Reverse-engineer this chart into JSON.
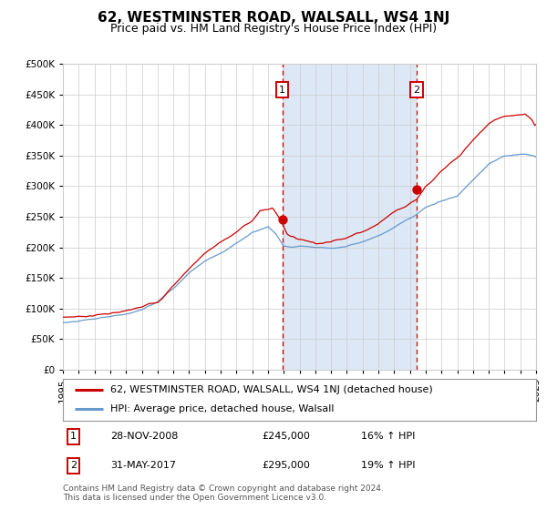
{
  "title": "62, WESTMINSTER ROAD, WALSALL, WS4 1NJ",
  "subtitle": "Price paid vs. HM Land Registry's House Price Index (HPI)",
  "legend_line1": "62, WESTMINSTER ROAD, WALSALL, WS4 1NJ (detached house)",
  "legend_line2": "HPI: Average price, detached house, Walsall",
  "annotation1_date": "28-NOV-2008",
  "annotation1_price": "£245,000",
  "annotation1_hpi": "16% ↑ HPI",
  "annotation1_year": 2008.91,
  "annotation1_value": 245000,
  "annotation2_date": "31-MAY-2017",
  "annotation2_price": "£295,000",
  "annotation2_hpi": "19% ↑ HPI",
  "annotation2_year": 2017.42,
  "annotation2_value": 295000,
  "year_start": 1995,
  "year_end": 2025,
  "ymin": 0,
  "ymax": 500000,
  "yticks": [
    0,
    50000,
    100000,
    150000,
    200000,
    250000,
    300000,
    350000,
    400000,
    450000,
    500000
  ],
  "red_color": "#cc0000",
  "blue_color": "#6699cc",
  "shade_color": "#dce8f5",
  "background_color": "#ffffff",
  "grid_color": "#cccccc",
  "title_fontsize": 11,
  "subtitle_fontsize": 9,
  "tick_fontsize": 7.5,
  "legend_fontsize": 8,
  "ann_fontsize": 8,
  "footer_text": "Contains HM Land Registry data © Crown copyright and database right 2024.\nThis data is licensed under the Open Government Licence v3.0.",
  "hpi_waypoints": [
    [
      1995.0,
      77000
    ],
    [
      1996.0,
      79000
    ],
    [
      1997.0,
      82000
    ],
    [
      1998.0,
      85000
    ],
    [
      1999.0,
      89000
    ],
    [
      2000.0,
      97000
    ],
    [
      2001.0,
      108000
    ],
    [
      2002.0,
      130000
    ],
    [
      2003.0,
      155000
    ],
    [
      2004.0,
      175000
    ],
    [
      2005.0,
      188000
    ],
    [
      2006.0,
      205000
    ],
    [
      2007.0,
      222000
    ],
    [
      2008.0,
      230000
    ],
    [
      2008.5,
      218000
    ],
    [
      2009.0,
      198000
    ],
    [
      2009.5,
      195000
    ],
    [
      2010.0,
      197000
    ],
    [
      2010.5,
      196000
    ],
    [
      2011.0,
      195000
    ],
    [
      2012.0,
      194000
    ],
    [
      2013.0,
      197000
    ],
    [
      2014.0,
      205000
    ],
    [
      2015.0,
      215000
    ],
    [
      2016.0,
      228000
    ],
    [
      2017.0,
      245000
    ],
    [
      2018.0,
      263000
    ],
    [
      2019.0,
      274000
    ],
    [
      2020.0,
      282000
    ],
    [
      2021.0,
      305000
    ],
    [
      2022.0,
      330000
    ],
    [
      2023.0,
      345000
    ],
    [
      2024.0,
      348000
    ],
    [
      2025.0,
      345000
    ]
  ],
  "red_waypoints": [
    [
      1995.0,
      86000
    ],
    [
      1996.0,
      88000
    ],
    [
      1997.0,
      91000
    ],
    [
      1998.0,
      95000
    ],
    [
      1999.0,
      97000
    ],
    [
      2000.0,
      102000
    ],
    [
      2001.0,
      112000
    ],
    [
      2002.0,
      140000
    ],
    [
      2003.0,
      168000
    ],
    [
      2004.0,
      195000
    ],
    [
      2005.0,
      212000
    ],
    [
      2006.0,
      228000
    ],
    [
      2007.0,
      248000
    ],
    [
      2007.5,
      263000
    ],
    [
      2008.3,
      268000
    ],
    [
      2008.91,
      245000
    ],
    [
      2009.2,
      228000
    ],
    [
      2009.8,
      220000
    ],
    [
      2010.5,
      218000
    ],
    [
      2011.0,
      215000
    ],
    [
      2012.0,
      218000
    ],
    [
      2013.0,
      228000
    ],
    [
      2014.0,
      238000
    ],
    [
      2015.0,
      252000
    ],
    [
      2016.0,
      272000
    ],
    [
      2017.42,
      295000
    ],
    [
      2018.0,
      318000
    ],
    [
      2019.0,
      342000
    ],
    [
      2020.0,
      360000
    ],
    [
      2021.0,
      388000
    ],
    [
      2022.0,
      415000
    ],
    [
      2023.0,
      428000
    ],
    [
      2024.3,
      435000
    ],
    [
      2024.7,
      425000
    ],
    [
      2025.0,
      410000
    ]
  ]
}
